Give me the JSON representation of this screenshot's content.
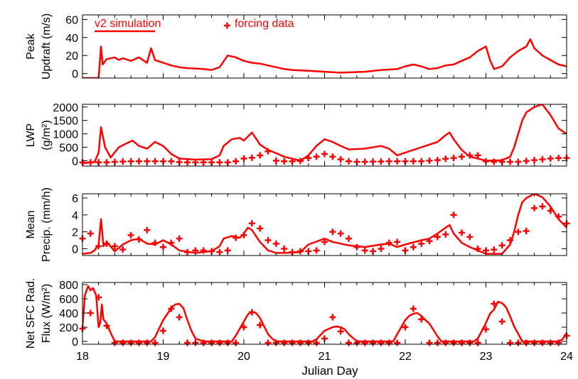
{
  "colors": {
    "series": "#ff0000",
    "axes": "#000000"
  },
  "chart_data": [
    {
      "type": "line",
      "ylabel_lines": [
        "Peak",
        "Updraft (m/s)"
      ],
      "ylim": [
        -5,
        65
      ],
      "yticks": [
        0,
        20,
        40,
        60
      ],
      "ytick_labels": [
        "0",
        "20",
        "40",
        "60"
      ],
      "legend": {
        "line_label": "v2 simulation",
        "marker_label": "forcing data",
        "placement": "top"
      },
      "series": [
        {
          "type": "line",
          "x": [
            18.0,
            18.2,
            18.23,
            18.25,
            18.3,
            18.4,
            18.45,
            18.5,
            18.6,
            18.7,
            18.8,
            18.85,
            18.9,
            19.0,
            19.1,
            19.2,
            19.3,
            19.5,
            19.6,
            19.7,
            19.8,
            19.9,
            20.0,
            20.1,
            20.2,
            20.3,
            20.4,
            20.5,
            20.6,
            20.8,
            21.0,
            21.2,
            21.5,
            21.7,
            21.9,
            22.0,
            22.1,
            22.2,
            22.3,
            22.4,
            22.5,
            22.6,
            22.7,
            22.8,
            22.9,
            23.0,
            23.05,
            23.1,
            23.2,
            23.3,
            23.4,
            23.5,
            23.55,
            23.6,
            23.7,
            23.8,
            23.9,
            24.0
          ],
          "y": [
            -5,
            -5,
            30,
            10,
            16,
            18,
            15,
            17,
            14,
            18,
            12,
            28,
            15,
            12,
            9,
            7,
            6,
            5,
            4,
            7,
            20,
            18,
            14,
            12,
            11,
            9,
            7,
            5,
            4,
            3,
            2,
            1,
            2,
            4,
            5,
            8,
            10,
            8,
            5,
            6,
            9,
            10,
            14,
            18,
            25,
            30,
            15,
            5,
            8,
            18,
            25,
            30,
            38,
            28,
            20,
            15,
            10,
            8
          ]
        },
        {
          "type": "markers",
          "x": [],
          "y": []
        }
      ]
    },
    {
      "type": "line",
      "ylabel_lines": [
        "LWP",
        "(g/m²)"
      ],
      "ylim": [
        -200,
        2100
      ],
      "yticks": [
        0,
        500,
        1000,
        1500,
        2000
      ],
      "ytick_labels": [
        "0",
        "500",
        "1000",
        "1500",
        "2000"
      ],
      "series": [
        {
          "type": "line",
          "x": [
            18.0,
            18.15,
            18.2,
            18.23,
            18.28,
            18.35,
            18.45,
            18.55,
            18.62,
            18.7,
            18.8,
            18.9,
            19.0,
            19.1,
            19.2,
            19.4,
            19.6,
            19.7,
            19.75,
            19.85,
            19.95,
            20.0,
            20.05,
            20.1,
            20.2,
            20.3,
            20.4,
            20.5,
            20.7,
            20.8,
            20.9,
            21.0,
            21.1,
            21.2,
            21.3,
            21.5,
            21.7,
            21.8,
            21.9,
            22.0,
            22.2,
            22.3,
            22.4,
            22.5,
            22.55,
            22.6,
            22.7,
            22.8,
            22.9,
            23.0,
            23.2,
            23.3,
            23.35,
            23.4,
            23.45,
            23.5,
            23.6,
            23.7,
            23.8,
            23.9,
            24.0
          ],
          "y": [
            -100,
            -50,
            300,
            1250,
            500,
            120,
            500,
            650,
            750,
            550,
            450,
            700,
            550,
            250,
            80,
            40,
            60,
            200,
            550,
            800,
            850,
            750,
            900,
            1050,
            600,
            400,
            280,
            150,
            0,
            200,
            550,
            800,
            700,
            550,
            420,
            450,
            550,
            450,
            200,
            300,
            500,
            600,
            700,
            950,
            1050,
            800,
            400,
            150,
            80,
            0,
            20,
            150,
            500,
            1000,
            1500,
            1800,
            2000,
            2100,
            1700,
            1200,
            1000
          ]
        },
        {
          "type": "markers",
          "x": [
            18.0,
            18.1,
            18.2,
            18.3,
            18.4,
            18.5,
            18.6,
            18.7,
            18.8,
            18.9,
            19.0,
            19.1,
            19.2,
            19.3,
            19.4,
            19.5,
            19.6,
            19.7,
            19.8,
            19.9,
            20.0,
            20.1,
            20.2,
            20.3,
            20.4,
            20.5,
            20.6,
            20.7,
            20.8,
            20.9,
            21.0,
            21.1,
            21.2,
            21.3,
            21.4,
            21.5,
            21.6,
            21.7,
            21.8,
            21.9,
            22.0,
            22.1,
            22.2,
            22.3,
            22.4,
            22.5,
            22.6,
            22.7,
            22.8,
            22.9,
            23.0,
            23.1,
            23.2,
            23.3,
            23.4,
            23.5,
            23.6,
            23.7,
            23.8,
            23.9,
            24.0
          ],
          "y": [
            -60,
            -60,
            -60,
            -60,
            -40,
            -30,
            -20,
            -20,
            -20,
            -20,
            -20,
            -20,
            -50,
            -60,
            -60,
            -60,
            -60,
            -60,
            -60,
            -20,
            80,
            110,
            200,
            350,
            0,
            -20,
            -20,
            -10,
            100,
            150,
            250,
            150,
            50,
            -20,
            -40,
            -40,
            -30,
            -30,
            -20,
            -20,
            -20,
            -20,
            -20,
            0,
            20,
            70,
            100,
            150,
            200,
            200,
            -20,
            -40,
            -40,
            -40,
            -40,
            -10,
            20,
            50,
            80,
            100,
            100
          ]
        }
      ]
    },
    {
      "type": "line",
      "ylabel_lines": [
        "Mean",
        "Precip. (mm/h)"
      ],
      "ylim": [
        -0.8,
        6.5
      ],
      "yticks": [
        0,
        2,
        4,
        6
      ],
      "ytick_labels": [
        "0",
        "2",
        "4",
        "6"
      ],
      "series": [
        {
          "type": "line",
          "x": [
            18.0,
            18.1,
            18.15,
            18.2,
            18.23,
            18.26,
            18.3,
            18.4,
            18.5,
            18.6,
            18.7,
            18.8,
            18.9,
            19.0,
            19.1,
            19.2,
            19.4,
            19.6,
            19.7,
            19.75,
            19.85,
            19.95,
            20.0,
            20.05,
            20.1,
            20.2,
            20.3,
            20.4,
            20.5,
            20.7,
            20.8,
            21.0,
            21.1,
            21.2,
            21.3,
            21.5,
            21.7,
            21.8,
            21.9,
            22.0,
            22.2,
            22.3,
            22.4,
            22.5,
            22.55,
            22.6,
            22.7,
            22.8,
            22.9,
            23.0,
            23.2,
            23.3,
            23.35,
            23.4,
            23.45,
            23.5,
            23.6,
            23.7,
            23.8,
            23.9,
            24.0
          ],
          "y": [
            -0.6,
            -0.5,
            -0.2,
            0.5,
            3.5,
            0.3,
            0.8,
            -0.3,
            0.5,
            1.0,
            1.2,
            0.6,
            0.5,
            1.0,
            0.5,
            -0.2,
            -0.5,
            -0.3,
            0.3,
            1.2,
            1.5,
            1.3,
            1.8,
            2.5,
            2.2,
            0.8,
            -0.2,
            -0.5,
            -0.5,
            -0.4,
            0.5,
            1.2,
            0.8,
            0.6,
            0.4,
            0.2,
            0.5,
            0.6,
            0.2,
            0.5,
            1.0,
            1.2,
            1.8,
            2.5,
            2.8,
            1.8,
            0.7,
            0.2,
            -0.2,
            -0.6,
            -0.6,
            0.5,
            2.0,
            4.0,
            5.5,
            6.0,
            6.5,
            6.1,
            5.0,
            3.5,
            2.5
          ]
        },
        {
          "type": "markers",
          "x": [
            18.0,
            18.1,
            18.2,
            18.3,
            18.4,
            18.5,
            18.6,
            18.7,
            18.8,
            18.9,
            19.0,
            19.1,
            19.2,
            19.3,
            19.4,
            19.5,
            19.6,
            19.7,
            19.8,
            19.9,
            20.0,
            20.1,
            20.2,
            20.3,
            20.4,
            20.5,
            20.6,
            20.7,
            20.8,
            20.9,
            21.0,
            21.1,
            21.2,
            21.3,
            21.4,
            21.5,
            21.6,
            21.7,
            21.8,
            21.9,
            22.0,
            22.1,
            22.2,
            22.3,
            22.4,
            22.5,
            22.6,
            22.7,
            22.8,
            22.9,
            23.0,
            23.1,
            23.2,
            23.3,
            23.4,
            23.5,
            23.6,
            23.7,
            23.8,
            23.9,
            24.0
          ],
          "y": [
            1.2,
            1.8,
            0.3,
            0.6,
            0.3,
            -0.1,
            1.6,
            1.1,
            2.2,
            0.7,
            0.2,
            0.7,
            1.2,
            -0.4,
            -0.2,
            -0.2,
            -0.3,
            -0.4,
            -0.2,
            1.3,
            1.6,
            3.0,
            2.4,
            1.0,
            0.6,
            0.0,
            -0.4,
            -0.3,
            -0.3,
            -0.2,
            0.8,
            2.0,
            1.8,
            1.2,
            0.2,
            -0.2,
            -0.3,
            0.0,
            0.7,
            0.8,
            -0.2,
            0.2,
            0.6,
            0.9,
            1.4,
            1.7,
            4.0,
            1.9,
            1.4,
            0.0,
            -0.2,
            -0.1,
            0.4,
            1.0,
            2.0,
            2.1,
            4.8,
            5.0,
            4.5,
            3.8,
            3.0
          ]
        }
      ]
    },
    {
      "type": "line",
      "ylabel_lines": [
        "Net SFC Rad.",
        "Flux (W/m²)"
      ],
      "ylim": [
        -40,
        830
      ],
      "yticks": [
        0,
        200,
        400,
        600,
        800
      ],
      "ytick_labels": [
        "0",
        "200",
        "400",
        "600",
        "800"
      ],
      "xlim": [
        18,
        24
      ],
      "xticks": [
        18,
        19,
        20,
        21,
        22,
        23,
        24
      ],
      "xtick_labels": [
        "18",
        "19",
        "20",
        "21",
        "22",
        "23",
        "24"
      ],
      "xlabel": "Julian Day",
      "series": [
        {
          "type": "line",
          "x": [
            18.0,
            18.03,
            18.07,
            18.1,
            18.13,
            18.17,
            18.2,
            18.22,
            18.24,
            18.26,
            18.3,
            18.35,
            18.4,
            18.5,
            18.85,
            18.9,
            19.0,
            19.1,
            19.15,
            19.2,
            19.25,
            19.3,
            19.35,
            19.4,
            19.5,
            19.85,
            19.9,
            20.0,
            20.05,
            20.1,
            20.15,
            20.2,
            20.3,
            20.35,
            20.4,
            20.85,
            20.9,
            21.0,
            21.1,
            21.15,
            21.2,
            21.25,
            21.3,
            21.4,
            21.45,
            21.85,
            21.9,
            22.0,
            22.05,
            22.1,
            22.15,
            22.2,
            22.25,
            22.3,
            22.4,
            22.45,
            22.85,
            22.9,
            23.0,
            23.05,
            23.1,
            23.15,
            23.2,
            23.25,
            23.3,
            23.35,
            23.45,
            23.9,
            23.95,
            24.0
          ],
          "y": [
            200,
            650,
            780,
            720,
            750,
            650,
            200,
            260,
            520,
            310,
            250,
            120,
            0,
            0,
            0,
            60,
            300,
            470,
            520,
            530,
            470,
            300,
            150,
            40,
            0,
            0,
            80,
            280,
            380,
            420,
            400,
            330,
            100,
            40,
            0,
            0,
            30,
            150,
            200,
            210,
            200,
            170,
            100,
            0,
            0,
            0,
            100,
            300,
            360,
            390,
            400,
            360,
            300,
            250,
            70,
            0,
            0,
            40,
            260,
            390,
            450,
            560,
            540,
            480,
            350,
            210,
            0,
            0,
            30,
            120
          ]
        },
        {
          "type": "markers",
          "x": [
            18.0,
            18.1,
            18.2,
            18.3,
            18.4,
            18.5,
            18.6,
            18.7,
            18.8,
            18.9,
            19.0,
            19.1,
            19.2,
            19.3,
            19.4,
            19.5,
            19.6,
            19.7,
            19.8,
            19.9,
            20.0,
            20.1,
            20.2,
            20.3,
            20.4,
            20.5,
            20.6,
            20.7,
            20.8,
            20.9,
            21.0,
            21.1,
            21.2,
            21.3,
            21.4,
            21.5,
            21.6,
            21.7,
            21.8,
            21.9,
            22.0,
            22.1,
            22.2,
            22.3,
            22.4,
            22.5,
            22.6,
            22.7,
            22.8,
            22.9,
            23.0,
            23.1,
            23.2,
            23.3,
            23.4,
            23.5,
            23.6,
            23.7,
            23.8,
            23.9,
            24.0
          ],
          "y": [
            180,
            400,
            620,
            220,
            -20,
            -20,
            -20,
            -20,
            -20,
            -20,
            150,
            460,
            340,
            -20,
            -20,
            -20,
            -20,
            -20,
            -20,
            -20,
            200,
            410,
            230,
            -20,
            -20,
            -20,
            -20,
            -20,
            -20,
            -20,
            40,
            340,
            140,
            -20,
            -20,
            -20,
            -20,
            -20,
            -20,
            -20,
            200,
            460,
            310,
            -20,
            -20,
            -20,
            -20,
            -20,
            -20,
            -20,
            170,
            530,
            280,
            -20,
            -20,
            -20,
            -20,
            -20,
            -20,
            -20,
            80
          ]
        }
      ]
    }
  ]
}
